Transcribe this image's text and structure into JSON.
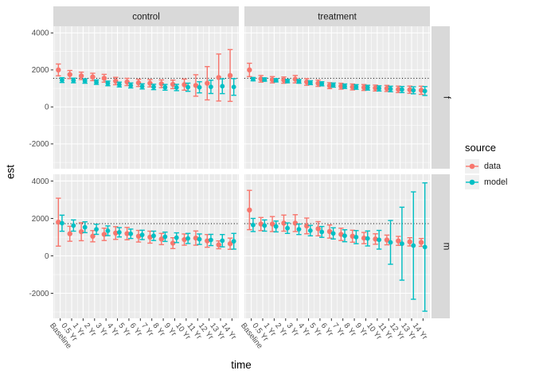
{
  "chart_data": {
    "type": "scatter",
    "title": "",
    "xlabel": "time",
    "ylabel": "est",
    "categories": [
      "Baseline",
      "0.5 Yr",
      "1 Yr",
      "2 Yr",
      "3 Yr",
      "4 Yr",
      "5 Yr",
      "6 Yr",
      "7 Yr",
      "8 Yr",
      "9 Yr",
      "10 Yr",
      "11 Yr",
      "12 Yr",
      "13 Yr",
      "14 Yr"
    ],
    "y_ticks": [
      4000,
      2000,
      0,
      -2000
    ],
    "ylim": [
      -3340,
      4360
    ],
    "grid": true,
    "col_facets": [
      "control",
      "treatment"
    ],
    "row_facets": [
      "f",
      "m"
    ],
    "reference_lines": {
      "f": 1550,
      "m": 1720
    },
    "legend": {
      "title": "source",
      "position": "right",
      "entries": [
        {
          "label": "data",
          "color": "#F8766D"
        },
        {
          "label": "model",
          "color": "#00BFC4"
        }
      ]
    },
    "panel_bg": "#EBEBEB",
    "strip_bg": "#D9D9D9",
    "facets": [
      {
        "col": "control",
        "row": "f",
        "series": [
          {
            "name": "data",
            "values": [
              2000,
              1750,
              1680,
              1620,
              1550,
              1400,
              1350,
              1300,
              1280,
              1250,
              1220,
              1205,
              1160,
              1280,
              1590,
              1700
            ],
            "err": [
              320,
              220,
              200,
              200,
              210,
              200,
              195,
              195,
              200,
              210,
              230,
              300,
              580,
              900,
              1270,
              1400
            ]
          },
          {
            "name": "model",
            "values": [
              1450,
              1430,
              1400,
              1340,
              1270,
              1210,
              1160,
              1110,
              1080,
              1060,
              1050,
              1065,
              1060,
              1085,
              1120,
              1080
            ],
            "err": [
              130,
              125,
              120,
              120,
              125,
              130,
              135,
              140,
              145,
              155,
              170,
              220,
              300,
              360,
              400,
              450
            ]
          }
        ]
      },
      {
        "col": "treatment",
        "row": "f",
        "series": [
          {
            "name": "data",
            "values": [
              2000,
              1520,
              1470,
              1450,
              1500,
              1350,
              1280,
              1150,
              1120,
              1080,
              1050,
              1020,
              1000,
              950,
              930,
              900
            ],
            "err": [
              360,
              180,
              170,
              170,
              200,
              180,
              170,
              160,
              160,
              160,
              160,
              160,
              165,
              175,
              195,
              220
            ]
          },
          {
            "name": "model",
            "values": [
              1500,
              1480,
              1440,
              1400,
              1380,
              1310,
              1250,
              1180,
              1120,
              1080,
              1040,
              1000,
              970,
              940,
              900,
              860
            ],
            "err": [
              90,
              90,
              90,
              95,
              100,
              105,
              110,
              115,
              120,
              125,
              130,
              140,
              150,
              165,
              190,
              240
            ]
          }
        ]
      },
      {
        "col": "control",
        "row": "m",
        "series": [
          {
            "name": "data",
            "values": [
              1800,
              1180,
              1290,
              1050,
              1150,
              1220,
              1190,
              1050,
              1000,
              900,
              680,
              870,
              950,
              800,
              590,
              650
            ],
            "err": [
              1280,
              400,
              480,
              300,
              330,
              340,
              330,
              310,
              320,
              300,
              290,
              300,
              380,
              340,
              210,
              300
            ]
          },
          {
            "name": "model",
            "values": [
              1745,
              1620,
              1530,
              1420,
              1340,
              1260,
              1180,
              1120,
              1070,
              1020,
              970,
              930,
              890,
              850,
              810,
              780
            ],
            "err": [
              430,
              300,
              290,
              270,
              260,
              250,
              250,
              250,
              250,
              250,
              260,
              270,
              280,
              300,
              330,
              420
            ]
          }
        ]
      },
      {
        "col": "treatment",
        "row": "m",
        "series": [
          {
            "name": "data",
            "values": [
              2450,
              1700,
              1700,
              1750,
              1750,
              1600,
              1450,
              1300,
              1150,
              1050,
              950,
              900,
              850,
              800,
              750,
              720
            ],
            "err": [
              1050,
              350,
              400,
              430,
              450,
              420,
              380,
              350,
              330,
              320,
              300,
              280,
              260,
              240,
              220,
              210
            ]
          },
          {
            "name": "model",
            "values": [
              1650,
              1620,
              1570,
              1480,
              1420,
              1350,
              1280,
              1200,
              1075,
              1000,
              930,
              860,
              720,
              650,
              550,
              470
            ],
            "err": [
              350,
              300,
              290,
              280,
              280,
              280,
              290,
              300,
              320,
              350,
              400,
              500,
              1170,
              1950,
              2870,
              3430
            ]
          }
        ]
      }
    ]
  }
}
